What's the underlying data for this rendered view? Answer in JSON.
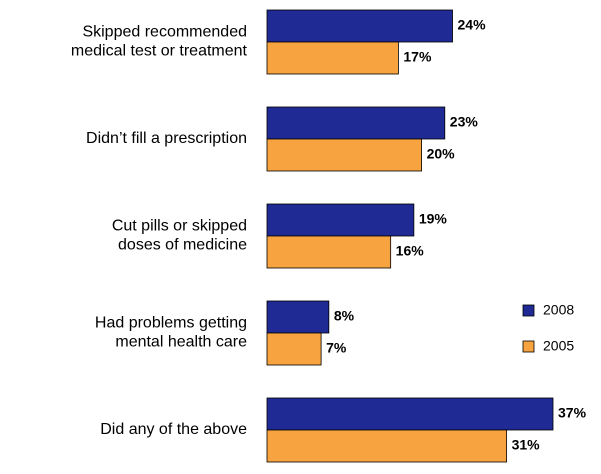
{
  "chart_data": {
    "type": "bar",
    "orientation": "horizontal",
    "categories": [
      "Skipped recommended\nmedical test or treatment",
      "Didn’t fill a prescription",
      "Cut pills or skipped\ndoses of medicine",
      "Had problems getting\nmental health care",
      "Did any of the above"
    ],
    "series": [
      {
        "name": "2008",
        "color": "#1f2a94",
        "values": [
          24,
          23,
          19,
          8,
          37
        ],
        "value_labels": [
          "24%",
          "23%",
          "19%",
          "8%",
          "37%"
        ]
      },
      {
        "name": "2005",
        "color": "#f7a33f",
        "values": [
          17,
          20,
          16,
          7,
          31
        ],
        "value_labels": [
          "17%",
          "20%",
          "16%",
          "7%",
          "31%"
        ]
      }
    ],
    "xlim": [
      0,
      37
    ],
    "legend": "right"
  }
}
